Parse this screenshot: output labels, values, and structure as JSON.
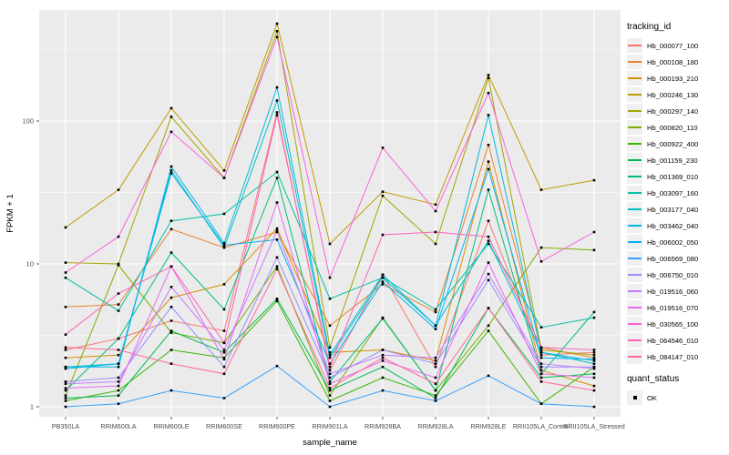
{
  "chart_data": {
    "type": "line",
    "xlabel": "sample_name",
    "ylabel": "FPKM + 1",
    "y_scale": "log10",
    "y_ticks": [
      1,
      10,
      100
    ],
    "y_minor_ticks": [
      3.1623,
      31.623,
      316.23
    ],
    "categories": [
      "PB350LA",
      "RRIM600LA",
      "RRIM600LE",
      "RRIM600SE",
      "RRIM600PE",
      "RRIM901LA",
      "RRIM928BA",
      "RRIM928LA",
      "RRIM928LE",
      "RRII105LA_Control",
      "RRII105LA_Stressed"
    ],
    "panel_background": "#EBEBEB",
    "gridline_color": "#FFFFFF",
    "point_shape": "square",
    "point_color": "#000000",
    "legend_position": "right",
    "series": [
      {
        "name": "Hb_000077_100",
        "color": "#F8766D",
        "values": [
          2.5,
          3.0,
          4.0,
          3.4,
          115,
          1.8,
          8.4,
          1.9,
          20,
          2.3,
          2.4
        ]
      },
      {
        "name": "Hb_000108_180",
        "color": "#EA8331",
        "values": [
          5.0,
          5.2,
          17.5,
          13.0,
          16.7,
          3.7,
          7.2,
          4.6,
          68,
          2.6,
          2.2
        ]
      },
      {
        "name": "Hb_000193_210",
        "color": "#D89000",
        "values": [
          2.2,
          2.3,
          5.8,
          7.2,
          17.7,
          2.4,
          2.5,
          2.1,
          52,
          1.8,
          1.4
        ]
      },
      {
        "name": "Hb_000246_130",
        "color": "#C09B00",
        "values": [
          18,
          33,
          123,
          45,
          480,
          13.8,
          32,
          26,
          210,
          33,
          38.5
        ]
      },
      {
        "name": "Hb_000297_140",
        "color": "#A3A500",
        "values": [
          10.2,
          10,
          107,
          40,
          425,
          2.6,
          30,
          13.8,
          200,
          2.5,
          2.3
        ]
      },
      {
        "name": "Hb_000820_110",
        "color": "#7CAE00",
        "values": [
          1.2,
          9.8,
          3.3,
          2.8,
          9.6,
          1.2,
          4.2,
          1.3,
          3.7,
          13,
          12.5
        ]
      },
      {
        "name": "Hb_000922_400",
        "color": "#39B600",
        "values": [
          1.1,
          1.3,
          2.5,
          2.2,
          5.5,
          1.1,
          1.6,
          1.2,
          3.4,
          1.05,
          1.9
        ]
      },
      {
        "name": "Hb_001159_230",
        "color": "#00BB4E",
        "values": [
          1.15,
          1.2,
          3.4,
          2.4,
          5.7,
          1.3,
          1.9,
          1.15,
          4.9,
          1.6,
          1.7
        ]
      },
      {
        "name": "Hb_001369_010",
        "color": "#00BF7D",
        "values": [
          1.3,
          3.0,
          12,
          4.8,
          40,
          1.5,
          4.15,
          1.3,
          33,
          1.7,
          4.6
        ]
      },
      {
        "name": "Hb_003097_160",
        "color": "#00C1A3",
        "values": [
          8.0,
          4.7,
          20,
          22.4,
          44,
          5.7,
          8.0,
          4.8,
          13.8,
          3.6,
          4.2
        ]
      },
      {
        "name": "Hb_003177_040",
        "color": "#00BFC4",
        "values": [
          1.9,
          2.0,
          45,
          13,
          139,
          2.2,
          8.0,
          3.7,
          14.5,
          2.4,
          2.0
        ]
      },
      {
        "name": "Hb_003462_040",
        "color": "#00BAE0",
        "values": [
          1.9,
          1.9,
          48,
          14,
          172,
          2.3,
          8.4,
          3.7,
          110,
          2.4,
          2.1
        ]
      },
      {
        "name": "Hb_006002_050",
        "color": "#00B0F6",
        "values": [
          1.85,
          2.0,
          43,
          13.5,
          14.8,
          2.0,
          7.5,
          3.5,
          46,
          2.2,
          2.15
        ]
      },
      {
        "name": "Hb_006569_080",
        "color": "#35A2FF",
        "values": [
          1.0,
          1.05,
          1.3,
          1.15,
          1.93,
          1.0,
          1.3,
          1.1,
          1.65,
          1.05,
          1.0
        ]
      },
      {
        "name": "Hb_006750_010",
        "color": "#9590FF",
        "values": [
          1.5,
          1.6,
          5.0,
          1.9,
          11.1,
          1.6,
          2.5,
          2.0,
          7.7,
          1.9,
          1.9
        ]
      },
      {
        "name": "Hb_019516_060",
        "color": "#C77CFF",
        "values": [
          1.45,
          1.5,
          6.9,
          2.5,
          17.0,
          1.7,
          2.3,
          2.2,
          8.5,
          2.0,
          1.85
        ]
      },
      {
        "name": "Hb_019516_070",
        "color": "#E76BF3",
        "values": [
          1.35,
          1.4,
          9.6,
          2.15,
          26.9,
          1.45,
          2.1,
          1.6,
          10.2,
          1.7,
          1.6
        ]
      },
      {
        "name": "Hb_030565_100",
        "color": "#FA62DB",
        "values": [
          8.7,
          15.5,
          84,
          40,
          387,
          8.0,
          65,
          23.4,
          157,
          10.4,
          16.7
        ]
      },
      {
        "name": "Hb_064546_010",
        "color": "#FF62BC",
        "values": [
          3.2,
          6.2,
          9.6,
          2.8,
          110,
          1.9,
          16,
          16.7,
          15.5,
          2.6,
          2.5
        ]
      },
      {
        "name": "Hb_084147_010",
        "color": "#FF6A98",
        "values": [
          2.6,
          2.5,
          2.0,
          1.7,
          9.2,
          1.35,
          2.2,
          1.45,
          4.9,
          1.5,
          1.3
        ]
      }
    ]
  },
  "legend": {
    "tracking_title": "tracking_id",
    "quant_title": "quant_status",
    "quant_value": "OK"
  }
}
